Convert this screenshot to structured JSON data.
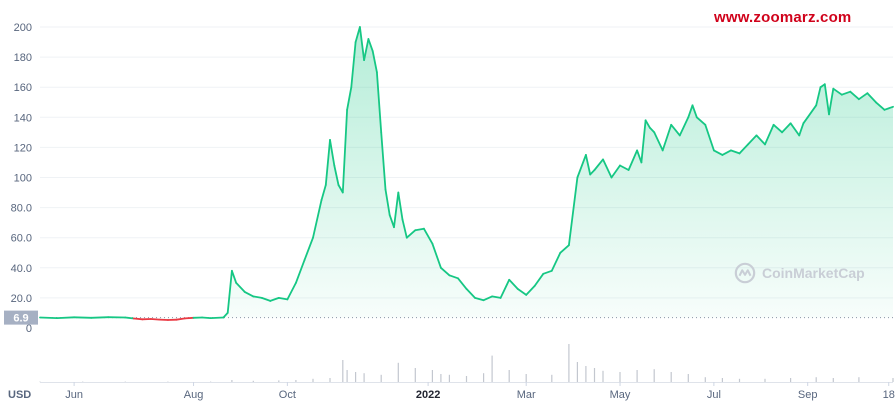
{
  "watermark": {
    "site": "www.zoomarz.com",
    "brand": "CoinMarketCap"
  },
  "colors": {
    "up": "#16c784",
    "down": "#ea3943",
    "grid": "#eff2f5",
    "volume": "#c3c7cf",
    "label_bg": "#a6b0c3"
  },
  "chart_data": {
    "type": "area",
    "currency_label": "USD",
    "baseline_label": "6.9",
    "baseline_value": 6.9,
    "y_ticks": [
      "0",
      "20.0",
      "40.0",
      "60.0",
      "80.0",
      "100",
      "120",
      "140",
      "160",
      "180",
      "200"
    ],
    "y_tick_values": [
      0,
      20,
      40,
      60,
      80,
      100,
      120,
      140,
      160,
      180,
      200
    ],
    "ylim": [
      0,
      200
    ],
    "x_ticks": [
      {
        "label": "Jun",
        "bold": false,
        "t": 0.04
      },
      {
        "label": "Aug",
        "bold": false,
        "t": 0.18
      },
      {
        "label": "Oct",
        "bold": false,
        "t": 0.29
      },
      {
        "label": "2022",
        "bold": true,
        "t": 0.455
      },
      {
        "label": "Mar",
        "bold": false,
        "t": 0.57
      },
      {
        "label": "May",
        "bold": false,
        "t": 0.68
      },
      {
        "label": "Jul",
        "bold": false,
        "t": 0.79
      },
      {
        "label": "Sep",
        "bold": false,
        "t": 0.9
      },
      {
        "label": "18",
        "bold": false,
        "t": 0.995
      }
    ],
    "series": [
      {
        "values": [
          [
            0.0,
            7.0
          ],
          [
            0.02,
            6.6
          ],
          [
            0.04,
            7.1
          ],
          [
            0.06,
            6.8
          ],
          [
            0.08,
            7.2
          ],
          [
            0.1,
            7.0
          ],
          [
            0.11,
            6.3
          ],
          [
            0.12,
            5.8
          ],
          [
            0.13,
            6.0
          ],
          [
            0.14,
            5.6
          ],
          [
            0.15,
            5.3
          ],
          [
            0.16,
            5.5
          ],
          [
            0.17,
            6.4
          ],
          [
            0.18,
            6.8
          ],
          [
            0.19,
            7.0
          ],
          [
            0.2,
            6.6
          ],
          [
            0.215,
            7.0
          ],
          [
            0.22,
            10.0
          ],
          [
            0.225,
            38.0
          ],
          [
            0.23,
            30.0
          ],
          [
            0.24,
            24.0
          ],
          [
            0.25,
            21.0
          ],
          [
            0.26,
            20.0
          ],
          [
            0.27,
            18.0
          ],
          [
            0.28,
            20.0
          ],
          [
            0.29,
            19.0
          ],
          [
            0.3,
            30.0
          ],
          [
            0.31,
            45.0
          ],
          [
            0.32,
            60.0
          ],
          [
            0.33,
            85.0
          ],
          [
            0.335,
            95.0
          ],
          [
            0.34,
            125.0
          ],
          [
            0.345,
            108.0
          ],
          [
            0.35,
            95.0
          ],
          [
            0.355,
            90.0
          ],
          [
            0.36,
            145.0
          ],
          [
            0.365,
            160.0
          ],
          [
            0.37,
            190.0
          ],
          [
            0.375,
            200.0
          ],
          [
            0.38,
            178.0
          ],
          [
            0.385,
            192.0
          ],
          [
            0.39,
            184.0
          ],
          [
            0.395,
            170.0
          ],
          [
            0.4,
            130.0
          ],
          [
            0.405,
            92.0
          ],
          [
            0.41,
            75.0
          ],
          [
            0.415,
            67.0
          ],
          [
            0.42,
            90.0
          ],
          [
            0.425,
            72.0
          ],
          [
            0.43,
            60.0
          ],
          [
            0.44,
            65.0
          ],
          [
            0.45,
            66.0
          ],
          [
            0.46,
            56.0
          ],
          [
            0.47,
            40.0
          ],
          [
            0.48,
            35.0
          ],
          [
            0.49,
            33.0
          ],
          [
            0.5,
            26.0
          ],
          [
            0.51,
            20.0
          ],
          [
            0.52,
            18.5
          ],
          [
            0.53,
            21.0
          ],
          [
            0.54,
            20.0
          ],
          [
            0.55,
            32.0
          ],
          [
            0.56,
            26.0
          ],
          [
            0.57,
            22.0
          ],
          [
            0.58,
            28.0
          ],
          [
            0.59,
            36.0
          ],
          [
            0.6,
            38.0
          ],
          [
            0.61,
            50.0
          ],
          [
            0.62,
            55.0
          ],
          [
            0.63,
            100.0
          ],
          [
            0.64,
            115.0
          ],
          [
            0.645,
            102.0
          ],
          [
            0.65,
            105.0
          ],
          [
            0.66,
            112.0
          ],
          [
            0.67,
            100.0
          ],
          [
            0.68,
            108.0
          ],
          [
            0.69,
            105.0
          ],
          [
            0.7,
            118.0
          ],
          [
            0.705,
            110.0
          ],
          [
            0.71,
            138.0
          ],
          [
            0.715,
            133.0
          ],
          [
            0.72,
            130.0
          ],
          [
            0.73,
            118.0
          ],
          [
            0.74,
            135.0
          ],
          [
            0.75,
            128.0
          ],
          [
            0.76,
            140.0
          ],
          [
            0.765,
            148.0
          ],
          [
            0.77,
            140.0
          ],
          [
            0.78,
            135.0
          ],
          [
            0.79,
            118.0
          ],
          [
            0.8,
            115.0
          ],
          [
            0.81,
            118.0
          ],
          [
            0.82,
            116.0
          ],
          [
            0.83,
            122.0
          ],
          [
            0.84,
            128.0
          ],
          [
            0.85,
            122.0
          ],
          [
            0.86,
            135.0
          ],
          [
            0.87,
            130.0
          ],
          [
            0.88,
            136.0
          ],
          [
            0.89,
            128.0
          ],
          [
            0.895,
            136.0
          ],
          [
            0.9,
            140.0
          ],
          [
            0.91,
            148.0
          ],
          [
            0.915,
            160.0
          ],
          [
            0.92,
            162.0
          ],
          [
            0.925,
            142.0
          ],
          [
            0.93,
            159.0
          ],
          [
            0.94,
            155.0
          ],
          [
            0.95,
            157.0
          ],
          [
            0.96,
            152.0
          ],
          [
            0.97,
            156.0
          ],
          [
            0.98,
            150.0
          ],
          [
            0.99,
            145.0
          ],
          [
            1.0,
            147.0
          ]
        ]
      }
    ],
    "volume": [
      [
        0.0,
        1
      ],
      [
        0.05,
        1
      ],
      [
        0.1,
        1
      ],
      [
        0.15,
        1
      ],
      [
        0.2,
        1
      ],
      [
        0.225,
        5
      ],
      [
        0.25,
        3
      ],
      [
        0.28,
        4
      ],
      [
        0.3,
        5
      ],
      [
        0.32,
        8
      ],
      [
        0.34,
        10
      ],
      [
        0.355,
        55
      ],
      [
        0.36,
        30
      ],
      [
        0.37,
        25
      ],
      [
        0.38,
        22
      ],
      [
        0.4,
        18
      ],
      [
        0.42,
        48
      ],
      [
        0.44,
        35
      ],
      [
        0.46,
        30
      ],
      [
        0.47,
        20
      ],
      [
        0.48,
        18
      ],
      [
        0.5,
        15
      ],
      [
        0.52,
        22
      ],
      [
        0.53,
        66
      ],
      [
        0.55,
        30
      ],
      [
        0.57,
        20
      ],
      [
        0.6,
        18
      ],
      [
        0.62,
        95
      ],
      [
        0.63,
        50
      ],
      [
        0.64,
        40
      ],
      [
        0.65,
        35
      ],
      [
        0.66,
        28
      ],
      [
        0.68,
        25
      ],
      [
        0.7,
        30
      ],
      [
        0.72,
        32
      ],
      [
        0.74,
        25
      ],
      [
        0.76,
        20
      ],
      [
        0.78,
        12
      ],
      [
        0.8,
        10
      ],
      [
        0.82,
        8
      ],
      [
        0.85,
        8
      ],
      [
        0.88,
        10
      ],
      [
        0.91,
        12
      ],
      [
        0.93,
        10
      ],
      [
        0.96,
        12
      ],
      [
        1.0,
        10
      ]
    ]
  }
}
